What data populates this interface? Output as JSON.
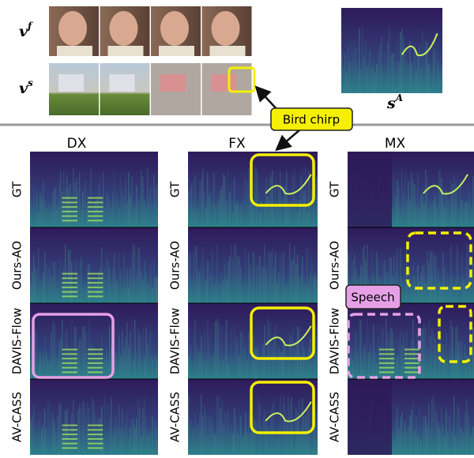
{
  "top": {
    "video_rows": [
      {
        "symbol": "v",
        "superscript": "f"
      },
      {
        "symbol": "v",
        "superscript": "s"
      }
    ],
    "audio": {
      "symbol": "s",
      "superscript": "A"
    }
  },
  "callouts": {
    "bird": "Bird chirp",
    "speech": "Speech"
  },
  "grid": {
    "columns": [
      "DX",
      "FX",
      "MX"
    ],
    "rows": [
      "GT",
      "Ours-AO",
      "DAVIS-Flow",
      "AV-CASS"
    ]
  }
}
